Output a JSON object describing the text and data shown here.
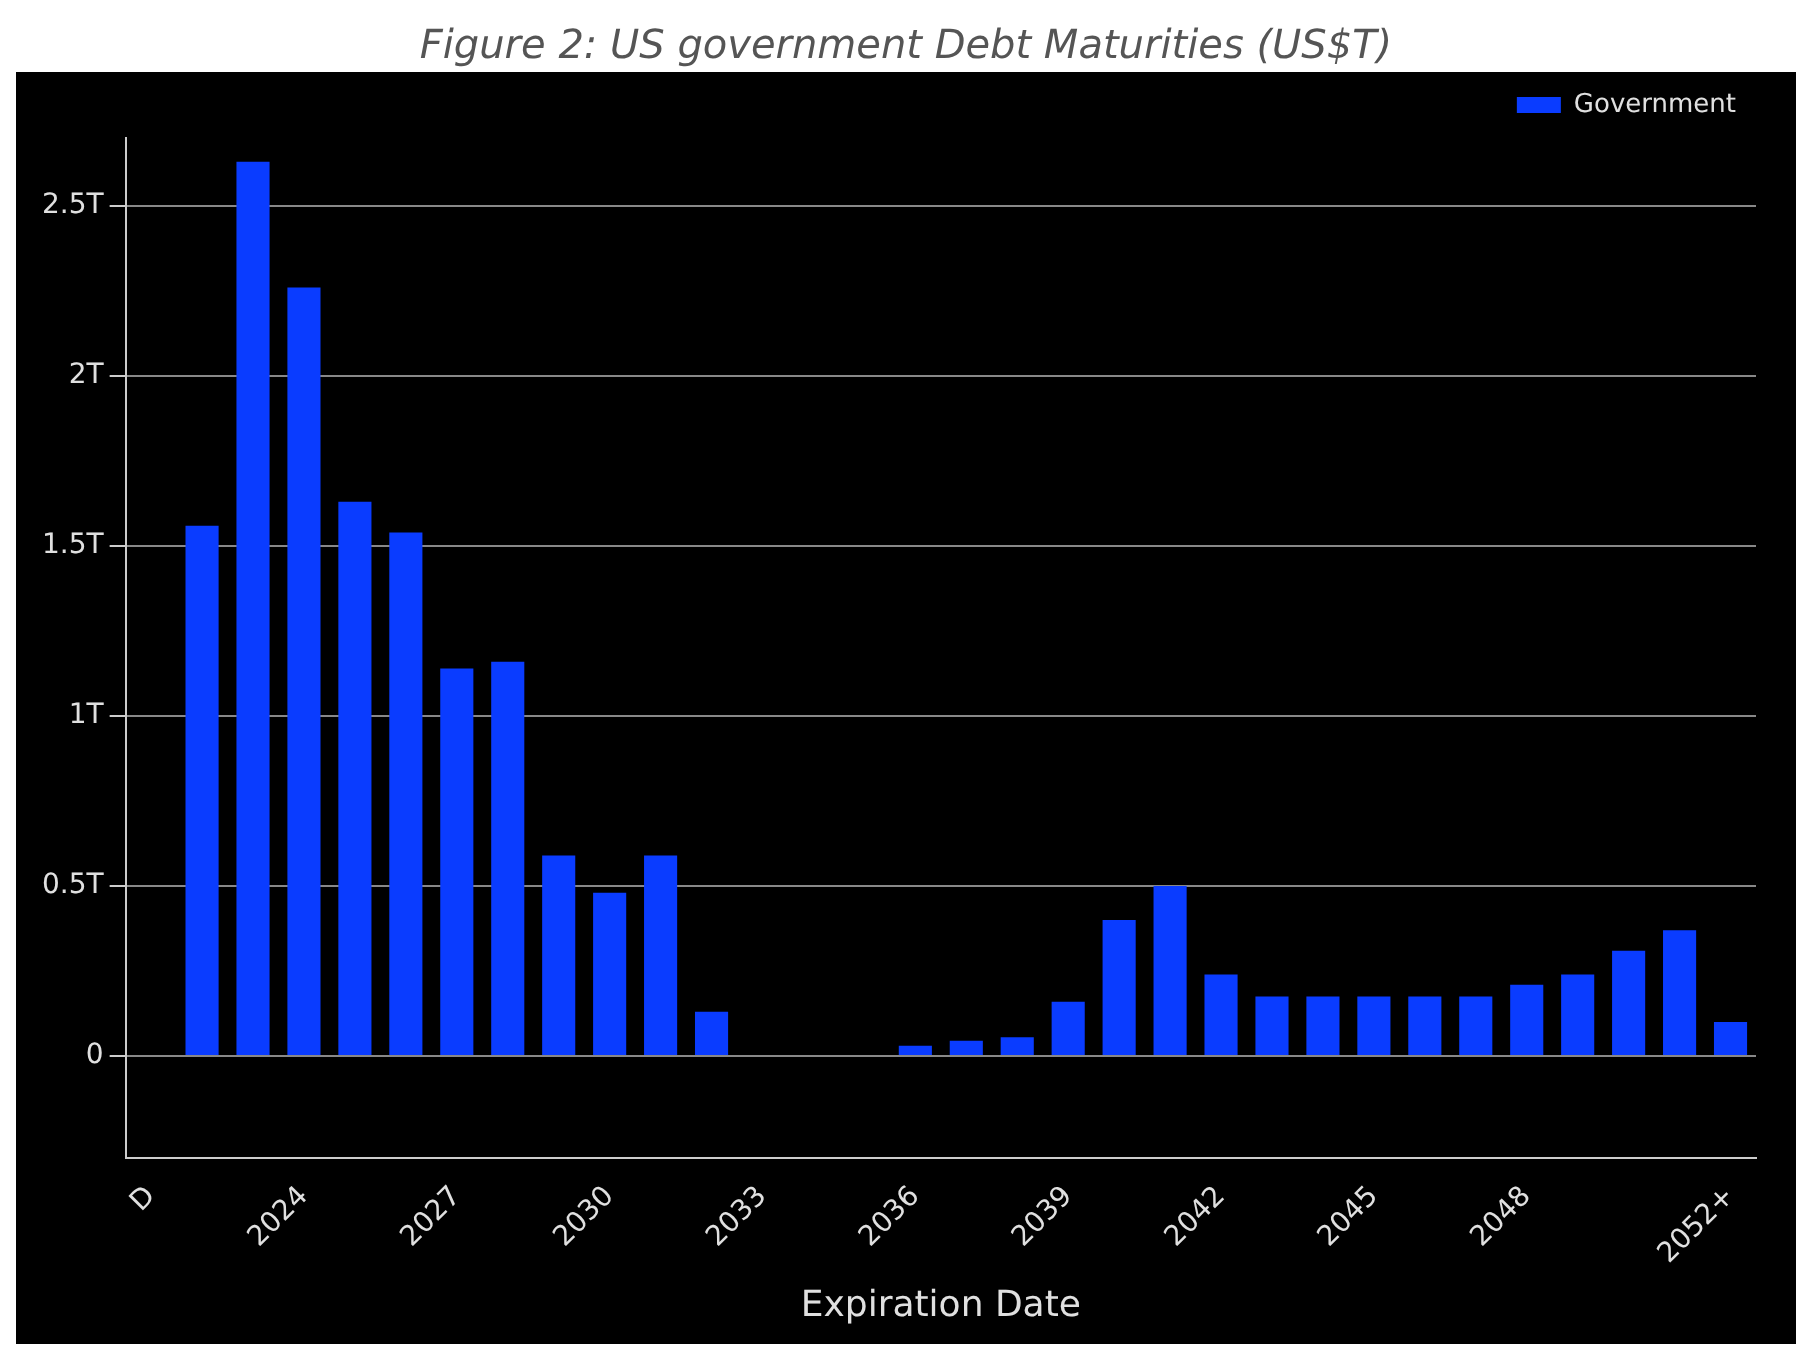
{
  "chart_data": {
    "type": "bar",
    "title": "Figure 2: US government Debt Maturities (US$T)",
    "xlabel": "Expiration Date",
    "categories": [
      "D",
      null,
      null,
      "2024",
      null,
      null,
      "2027",
      null,
      null,
      "2030",
      null,
      null,
      "2033",
      null,
      null,
      "2036",
      null,
      null,
      "2039",
      null,
      null,
      "2042",
      null,
      null,
      "2045",
      null,
      null,
      "2048",
      null,
      null,
      null,
      "2052+"
    ],
    "series": [
      {
        "name": "Government",
        "color": "#0a3cff",
        "values": [
          null,
          1.56,
          2.63,
          2.26,
          1.63,
          1.54,
          1.14,
          1.16,
          0.59,
          0.48,
          0.59,
          0.13,
          null,
          null,
          null,
          0.03,
          0.045,
          0.055,
          0.16,
          0.4,
          0.5,
          0.24,
          0.175,
          0.175,
          0.175,
          0.175,
          0.175,
          0.21,
          0.24,
          0.31,
          0.37,
          0.1
        ]
      }
    ],
    "ylim": [
      -0.3,
      2.7
    ],
    "yticks": [
      {
        "value": 0,
        "label": "0"
      },
      {
        "value": 0.5,
        "label": "0.5T"
      },
      {
        "value": 1,
        "label": "1T"
      },
      {
        "value": 1.5,
        "label": "1.5T"
      },
      {
        "value": 2,
        "label": "2T"
      },
      {
        "value": 2.5,
        "label": "2.5T"
      }
    ],
    "grid": "y",
    "legend": "top right"
  }
}
